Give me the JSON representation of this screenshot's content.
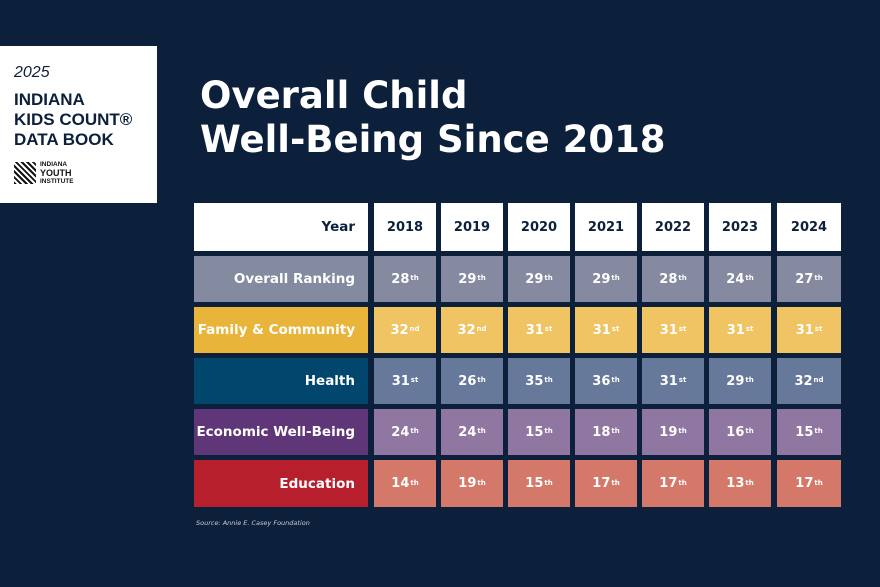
{
  "logo": {
    "year": "2025",
    "title_lines": [
      "INDIANA",
      "KIDS COUNT®",
      "DATA BOOK"
    ],
    "org_lines": [
      "INDIANA",
      "YOUTH",
      "INSTITUTE"
    ]
  },
  "title_lines": [
    "Overall Child",
    "Well-Being Since 2018"
  ],
  "table": {
    "header_label": "Year",
    "years": [
      "2018",
      "2019",
      "2020",
      "2021",
      "2022",
      "2023",
      "2024"
    ],
    "rows": [
      {
        "label": "Overall Ranking",
        "label_color": "#848aa0",
        "cell_color": "#858aa1",
        "values": [
          [
            "28",
            "th"
          ],
          [
            "29",
            "th"
          ],
          [
            "29",
            "th"
          ],
          [
            "29",
            "th"
          ],
          [
            "28",
            "th"
          ],
          [
            "24",
            "th"
          ],
          [
            "27",
            "th"
          ]
        ]
      },
      {
        "label": "Family & Community",
        "label_color": "#e8b53a",
        "cell_color": "#f0c462",
        "values": [
          [
            "32",
            "nd"
          ],
          [
            "32",
            "nd"
          ],
          [
            "31",
            "st"
          ],
          [
            "31",
            "st"
          ],
          [
            "31",
            "st"
          ],
          [
            "31",
            "st"
          ],
          [
            "31",
            "st"
          ]
        ]
      },
      {
        "label": "Health",
        "label_color": "#01466d",
        "cell_color": "#67799a",
        "values": [
          [
            "31",
            "st"
          ],
          [
            "26",
            "th"
          ],
          [
            "35",
            "th"
          ],
          [
            "36",
            "th"
          ],
          [
            "31",
            "st"
          ],
          [
            "29",
            "th"
          ],
          [
            "32",
            "nd"
          ]
        ]
      },
      {
        "label": "Economic Well-Being",
        "label_color": "#5f3677",
        "cell_color": "#8f77a1",
        "values": [
          [
            "24",
            "th"
          ],
          [
            "24",
            "th"
          ],
          [
            "15",
            "th"
          ],
          [
            "18",
            "th"
          ],
          [
            "19",
            "th"
          ],
          [
            "16",
            "th"
          ],
          [
            "15",
            "th"
          ]
        ]
      },
      {
        "label": "Education",
        "label_color": "#b81f2d",
        "cell_color": "#d4796a",
        "values": [
          [
            "14",
            "th"
          ],
          [
            "19",
            "th"
          ],
          [
            "15",
            "th"
          ],
          [
            "17",
            "th"
          ],
          [
            "17",
            "th"
          ],
          [
            "13",
            "th"
          ],
          [
            "17",
            "th"
          ]
        ]
      }
    ]
  },
  "source": "Source: Annie E. Casey Foundation"
}
